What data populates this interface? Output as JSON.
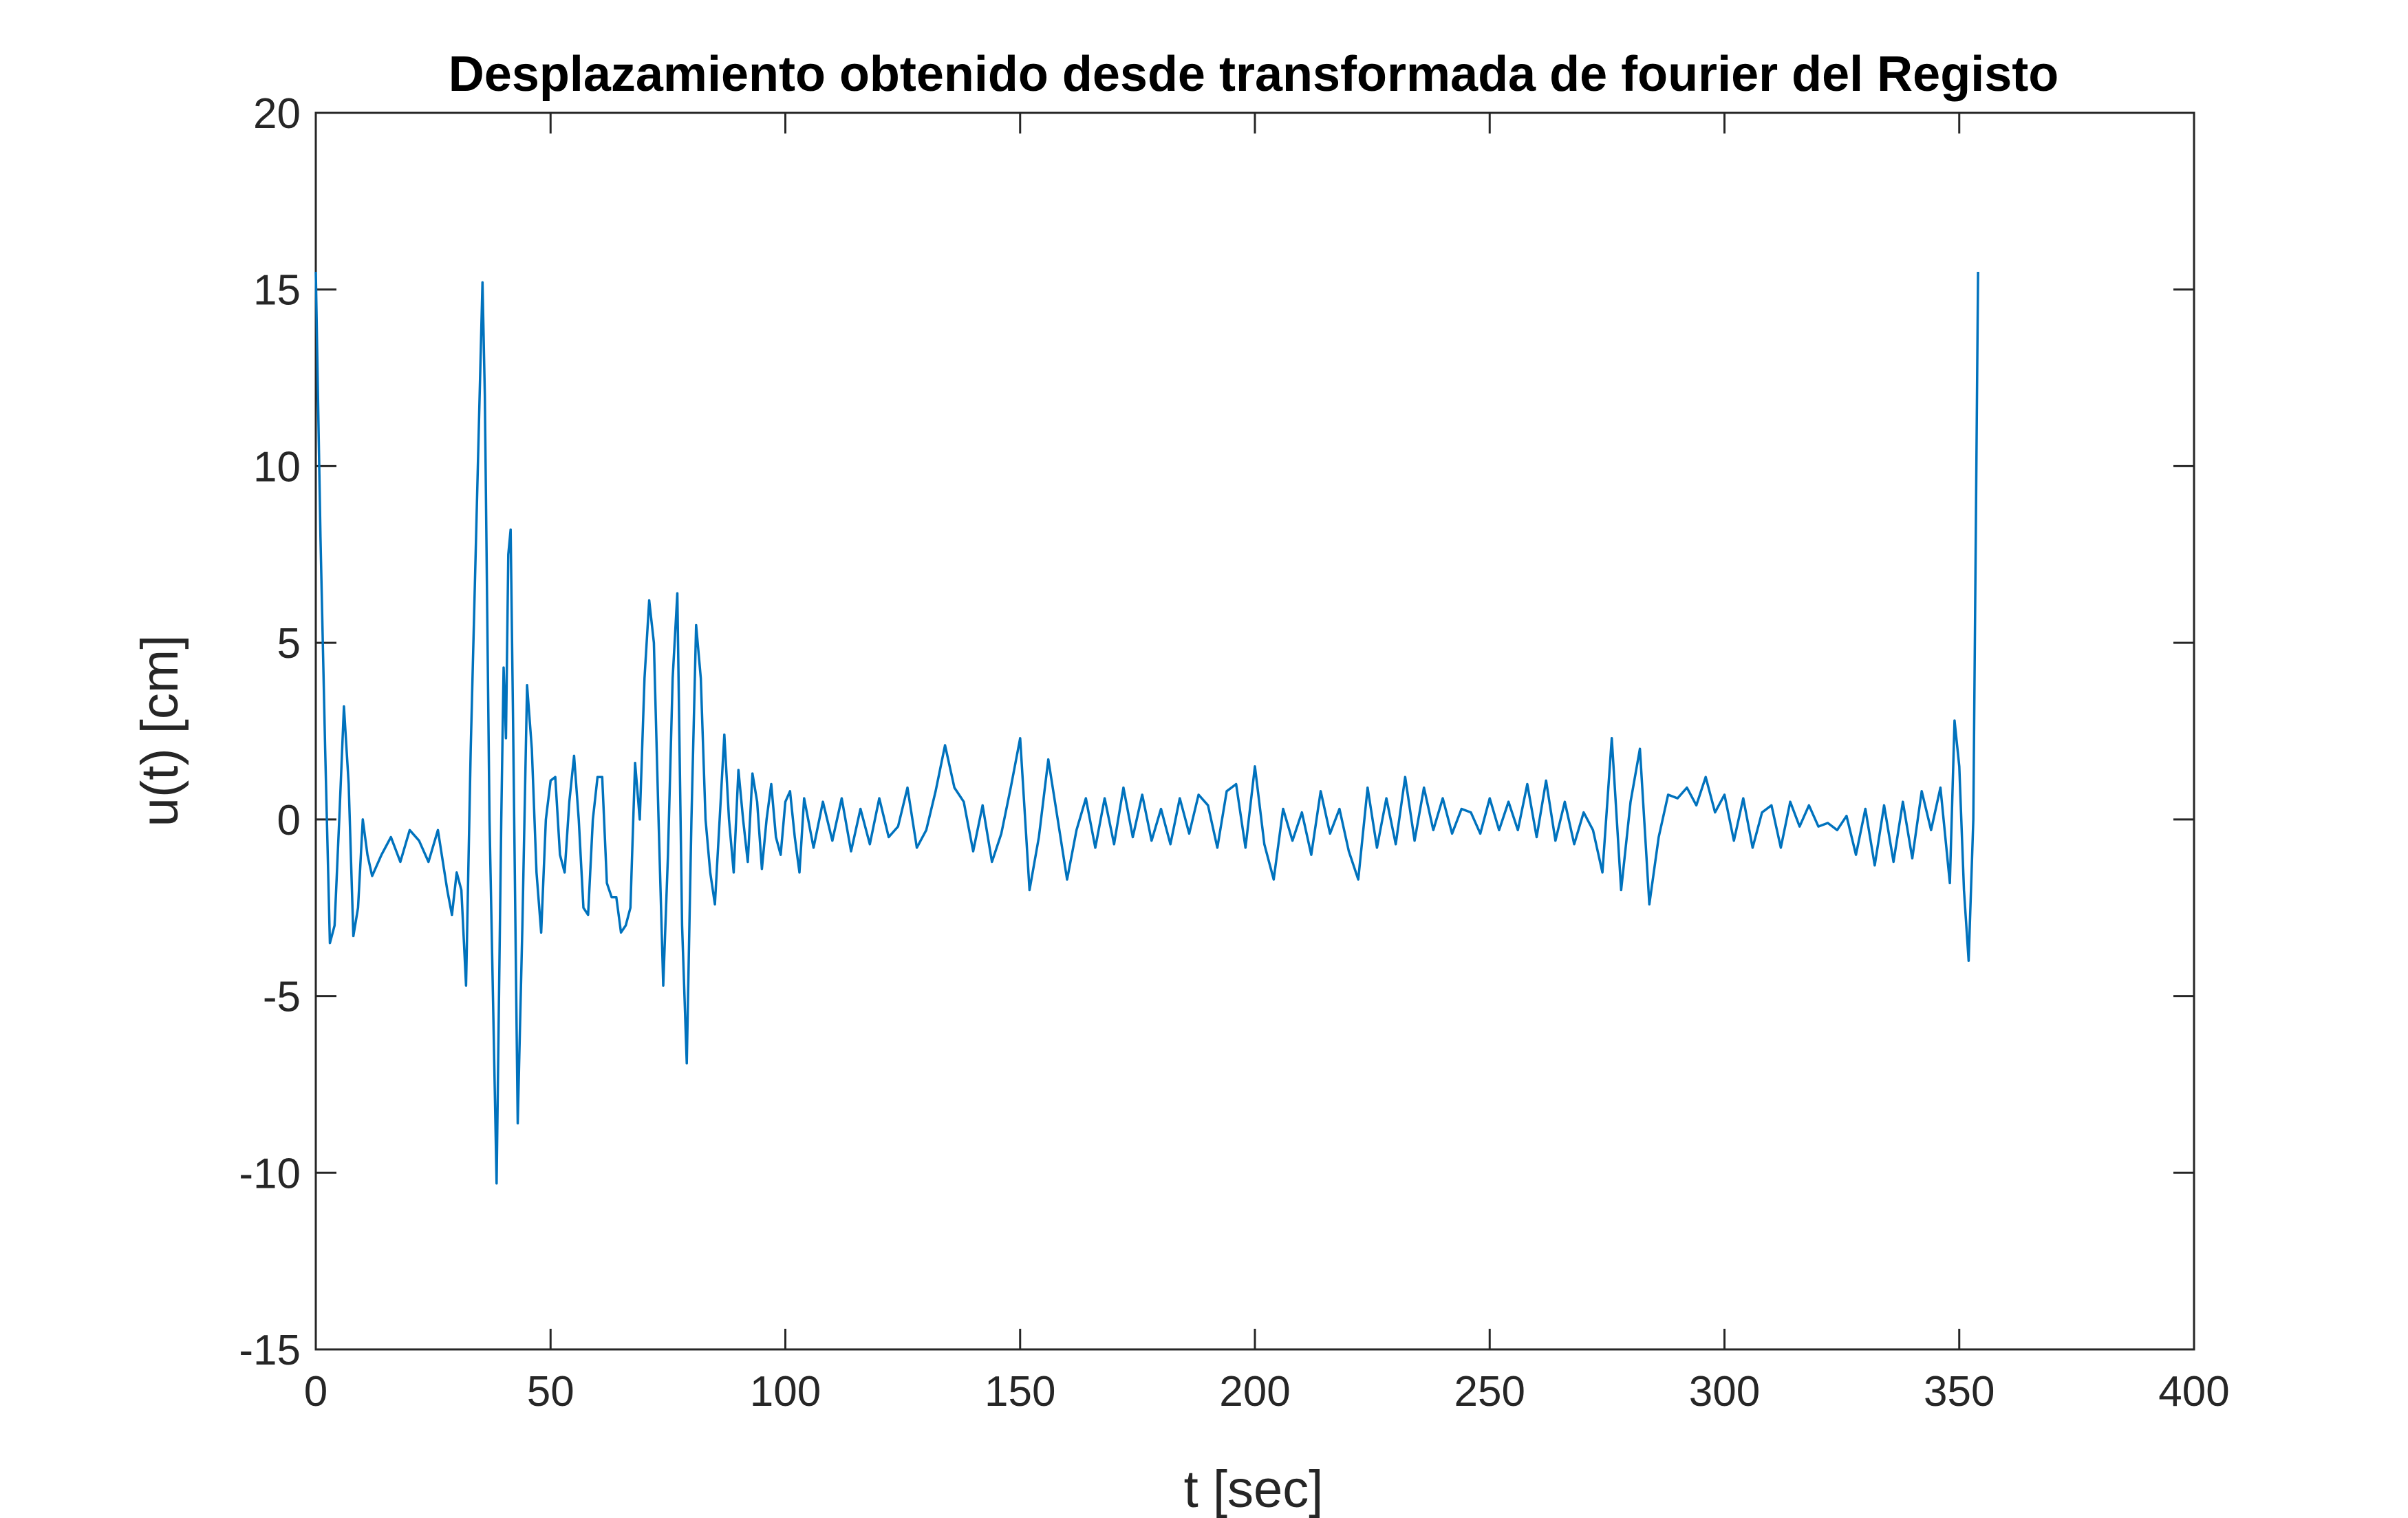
{
  "chart_data": {
    "type": "line",
    "title": "Desplazamiento obtenido desde transformada de fourier del Registo",
    "xlabel": "t [sec]",
    "ylabel": "u(t) [cm]",
    "color": "#0072bd",
    "xlim": [
      0,
      400
    ],
    "xticks": [
      0,
      50,
      100,
      150,
      200,
      250,
      300,
      350,
      400
    ],
    "ylim": [
      -15,
      20
    ],
    "yticks": [
      -15,
      -10,
      -5,
      0,
      5,
      10,
      15,
      20
    ],
    "grid": false,
    "x": [
      0,
      1,
      2,
      3,
      4,
      5,
      6,
      7,
      8,
      9,
      10,
      11,
      12,
      14,
      16,
      18,
      20,
      22,
      24,
      26,
      28,
      29,
      30,
      31,
      32,
      33,
      35.5,
      36,
      37,
      38.5,
      39.5,
      40,
      40.5,
      41,
      41.5,
      42,
      43,
      44,
      45,
      46,
      47,
      48,
      49,
      50,
      51,
      52,
      53,
      54,
      55,
      56,
      57,
      58,
      59,
      60,
      61,
      62,
      63,
      64,
      65,
      66,
      67,
      68,
      69,
      70,
      71,
      72,
      73,
      74,
      75,
      76,
      77,
      78,
      79,
      80,
      81,
      82,
      83,
      84,
      85,
      86,
      87,
      88,
      89,
      90,
      91,
      92,
      93,
      94,
      95,
      96,
      97,
      98,
      99,
      100,
      101,
      102,
      103,
      104,
      106,
      108,
      110,
      112,
      114,
      116,
      118,
      120,
      122,
      124,
      126,
      128,
      130,
      132,
      134,
      136,
      138,
      140,
      142,
      144,
      146,
      148,
      150,
      152,
      154,
      156,
      158,
      160,
      162,
      164,
      166,
      168,
      170,
      172,
      174,
      176,
      178,
      180,
      182,
      184,
      186,
      188,
      190,
      192,
      194,
      196,
      198,
      200,
      202,
      204,
      206,
      208,
      210,
      212,
      214,
      216,
      218,
      220,
      222,
      224,
      226,
      228,
      230,
      232,
      234,
      236,
      238,
      240,
      242,
      244,
      246,
      248,
      250,
      252,
      254,
      256,
      258,
      260,
      262,
      264,
      266,
      268,
      270,
      272,
      274,
      276,
      278,
      280,
      282,
      284,
      286,
      288,
      290,
      292,
      294,
      296,
      298,
      300,
      302,
      304,
      306,
      308,
      310,
      312,
      314,
      316,
      318,
      320,
      322,
      324,
      326,
      328,
      330,
      332,
      334,
      336,
      338,
      340,
      342,
      344,
      346,
      348,
      349,
      350,
      351,
      352,
      353,
      354
    ],
    "values": [
      15.5,
      8,
      2,
      -3.5,
      -3,
      0,
      3.2,
      1,
      -3.3,
      -2.5,
      0,
      -1,
      -1.6,
      -1,
      -0.5,
      -1.2,
      -0.3,
      -0.6,
      -1.2,
      -0.3,
      -2,
      -2.7,
      -1.5,
      -2,
      -4.7,
      2,
      15.2,
      12,
      0,
      -10.3,
      0,
      4.3,
      2.3,
      7.5,
      8.2,
      3,
      -8.6,
      -3,
      3.8,
      2,
      -1.5,
      -3.2,
      0,
      1.1,
      1.2,
      -1,
      -1.5,
      0.5,
      1.8,
      0,
      -2.5,
      -2.7,
      0,
      1.2,
      1.2,
      -1.8,
      -2.2,
      -2.2,
      -3.2,
      -3,
      -2.5,
      1.6,
      0,
      4,
      6.2,
      5,
      0,
      -4.7,
      -1,
      4,
      6.4,
      -3,
      -6.9,
      0,
      5.5,
      4,
      0,
      -1.5,
      -2.4,
      0,
      2.4,
      0,
      -1.5,
      1.4,
      0,
      -1.2,
      1.3,
      0.5,
      -1.4,
      0,
      1,
      -0.5,
      -1,
      0.5,
      0.8,
      -0.5,
      -1.5,
      0.6,
      -0.8,
      0.5,
      -0.6,
      0.6,
      -0.9,
      0.3,
      -0.7,
      0.6,
      -0.5,
      -0.2,
      0.9,
      -0.8,
      -0.3,
      0.8,
      2.1,
      0.9,
      0.5,
      -0.9,
      0.4,
      -1.2,
      -0.4,
      0.9,
      2.3,
      -2.0,
      -0.5,
      1.7,
      0,
      -1.7,
      -0.3,
      0.6,
      -0.8,
      0.6,
      -0.7,
      0.9,
      -0.5,
      0.7,
      -0.6,
      0.3,
      -0.7,
      0.6,
      -0.4,
      0.7,
      0.4,
      -0.8,
      0.8,
      1.0,
      -0.8,
      1.5,
      -0.7,
      -1.7,
      0.3,
      -0.6,
      0.2,
      -1.0,
      0.8,
      -0.4,
      0.3,
      -0.9,
      -1.7,
      0.9,
      -0.8,
      0.6,
      -0.7,
      1.2,
      -0.6,
      0.9,
      -0.3,
      0.6,
      -0.4,
      0.3,
      0.2,
      -0.4,
      0.6,
      -0.3,
      0.5,
      -0.3,
      1.0,
      -0.5,
      1.1,
      -0.6,
      0.5,
      -0.7,
      0.2,
      -0.3,
      -1.5,
      2.3,
      -2.0,
      0.5,
      2.0,
      -2.4,
      -0.5,
      0.7,
      0.6,
      0.9,
      0.4,
      1.2,
      0.2,
      0.7,
      -0.6,
      0.6,
      -0.8,
      0.2,
      0.4,
      -0.8,
      0.5,
      -0.2,
      0.4,
      -0.2,
      -0.1,
      -0.3,
      0.1,
      -1.0,
      0.3,
      -1.3,
      0.4,
      -1.2,
      0.5,
      -1.1,
      0.8,
      -0.3,
      0.9,
      -1.8,
      2.8,
      1.5,
      -2,
      -4,
      0,
      15.5
    ]
  }
}
